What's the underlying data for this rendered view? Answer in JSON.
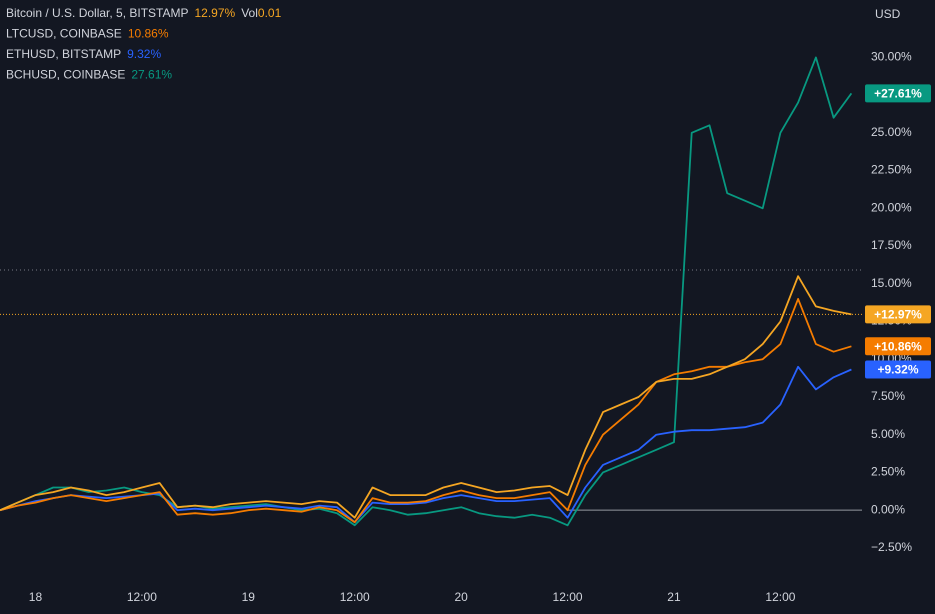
{
  "chart_data": {
    "type": "line",
    "y_unit": "USD",
    "x": [
      -4,
      -2,
      0,
      2,
      4,
      6,
      8,
      10,
      12,
      14,
      16,
      18,
      20,
      22,
      24,
      26,
      28,
      30,
      32,
      34,
      36,
      38,
      40,
      42,
      44,
      46,
      48,
      50,
      52,
      54,
      56,
      58,
      60,
      62,
      64,
      66,
      68,
      70,
      72,
      74,
      76,
      78,
      80,
      82,
      84,
      86,
      88,
      90,
      92
    ],
    "xlim": [
      -4,
      93.2
    ],
    "xticks": [
      {
        "value": 0,
        "label": "18"
      },
      {
        "value": 12,
        "label": "12:00"
      },
      {
        "value": 24,
        "label": "19"
      },
      {
        "value": 36,
        "label": "12:00"
      },
      {
        "value": 48,
        "label": "20"
      },
      {
        "value": 60,
        "label": "12:00"
      },
      {
        "value": 72,
        "label": "21"
      },
      {
        "value": 84,
        "label": "12:00"
      }
    ],
    "ylim": [
      -3.5,
      33.8
    ],
    "yticks": [
      {
        "value": -2.5,
        "label": "−2.50%"
      },
      {
        "value": 0,
        "label": "0.00%"
      },
      {
        "value": 2.5,
        "label": "2.50%"
      },
      {
        "value": 5,
        "label": "5.00%"
      },
      {
        "value": 7.5,
        "label": "7.50%"
      },
      {
        "value": 10,
        "label": "10.00%"
      },
      {
        "value": 12.5,
        "label": "12.50%"
      },
      {
        "value": 15,
        "label": "15.00%"
      },
      {
        "value": 17.5,
        "label": "17.50%"
      },
      {
        "value": 20,
        "label": "20.00%"
      },
      {
        "value": 22.5,
        "label": "22.50%"
      },
      {
        "value": 25,
        "label": "25.00%"
      },
      {
        "value": 27.5,
        "label": "27.50%"
      },
      {
        "value": 30,
        "label": "30.00%"
      }
    ],
    "grid": false,
    "series": [
      {
        "name": "Bitcoin / U.S. Dollar, 5, BITSTAMP",
        "color": "#f5a623",
        "last_value_label": "12.97%",
        "badge_label": "+12.97%",
        "volume_name": "Vol",
        "volume": 0.01,
        "price_line": true,
        "values": [
          0,
          0.5,
          1,
          1.2,
          1.5,
          1.3,
          1,
          1.2,
          1.5,
          1.8,
          0.2,
          0.3,
          0.2,
          0.4,
          0.5,
          0.6,
          0.5,
          0.4,
          0.6,
          0.5,
          -0.5,
          1.5,
          1,
          1,
          1,
          1.5,
          1.8,
          1.5,
          1.2,
          1.3,
          1.5,
          1.6,
          1,
          4,
          6.5,
          7,
          7.5,
          8.5,
          8.7,
          8.7,
          9,
          9.5,
          10,
          11,
          12.5,
          15.5,
          13.5,
          13.2,
          12.97
        ]
      },
      {
        "name": "LTCUSD, COINBASE",
        "color": "#f57c00",
        "last_value_label": "10.86%",
        "badge_label": "+10.86%",
        "values": [
          0,
          0.3,
          0.5,
          0.8,
          1,
          0.8,
          0.6,
          0.8,
          1,
          1.2,
          -0.3,
          -0.2,
          -0.3,
          -0.2,
          0,
          0.1,
          0,
          -0.1,
          0.2,
          0,
          -0.8,
          0.8,
          0.5,
          0.5,
          0.6,
          1,
          1.3,
          1,
          0.8,
          0.8,
          1,
          1.2,
          0,
          3,
          5,
          6,
          7,
          8.5,
          9,
          9.2,
          9.5,
          9.5,
          9.8,
          10,
          11,
          14,
          11,
          10.5,
          10.86
        ]
      },
      {
        "name": "ETHUSD, BITSTAMP",
        "color": "#2962ff",
        "last_value_label": "9.32%",
        "badge_label": "+9.32%",
        "values": [
          0,
          0.3,
          0.6,
          0.8,
          1,
          0.9,
          0.8,
          0.9,
          1,
          1.1,
          0,
          0.1,
          0,
          0.1,
          0.2,
          0.3,
          0.2,
          0.1,
          0.3,
          0.2,
          -0.8,
          0.5,
          0.4,
          0.4,
          0.5,
          0.8,
          1,
          0.8,
          0.6,
          0.6,
          0.7,
          0.8,
          -0.5,
          1.5,
          3,
          3.5,
          4,
          5,
          5.2,
          5.3,
          5.3,
          5.4,
          5.5,
          5.8,
          7,
          9.5,
          8,
          8.8,
          9.32
        ]
      },
      {
        "name": "BCHUSD, COINBASE",
        "color": "#089981",
        "last_value_label": "27.61%",
        "badge_label": "+27.61%",
        "values": [
          0,
          0.5,
          1,
          1.5,
          1.5,
          1.2,
          1.3,
          1.5,
          1.2,
          1,
          0.2,
          0.3,
          0.1,
          0.2,
          0.3,
          0.4,
          0.2,
          0,
          0.1,
          -0.2,
          -1,
          0.2,
          0,
          -0.3,
          -0.2,
          0,
          0.2,
          -0.2,
          -0.4,
          -0.5,
          -0.3,
          -0.5,
          -1,
          1,
          2.5,
          3,
          3.5,
          4,
          4.5,
          25,
          25.5,
          21,
          20.5,
          20,
          25,
          27,
          30,
          26,
          27.61
        ]
      }
    ]
  }
}
